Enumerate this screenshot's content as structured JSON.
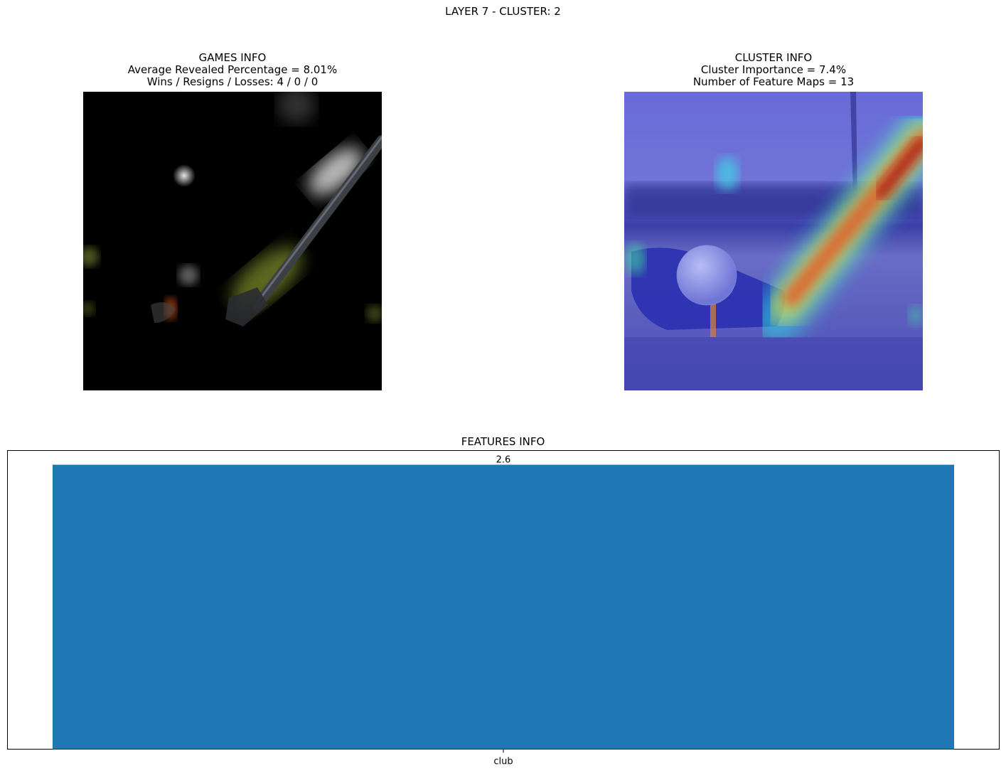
{
  "suptitle": "LAYER 7 - CLUSTER: 2",
  "games_panel": {
    "title": "GAMES INFO",
    "line1": "Average Revealed Percentage = 8.01%",
    "line2": "Wins / Resigns / Losses: 4 / 0 / 0"
  },
  "cluster_panel": {
    "title": "CLUSTER INFO",
    "line1": "Cluster Importance = 7.4%",
    "line2": "Number of Feature Maps = 13"
  },
  "chart_data": {
    "type": "bar",
    "title": "FEATURES INFO",
    "categories": [
      "club"
    ],
    "values": [
      2.6
    ],
    "data_labels": [
      "2.6"
    ],
    "xlabel": "",
    "ylabel": "",
    "ylim": [
      0,
      2.73
    ],
    "yticks_visible": false,
    "grid": false,
    "colors": {
      "bar": "#1f77b4"
    }
  }
}
